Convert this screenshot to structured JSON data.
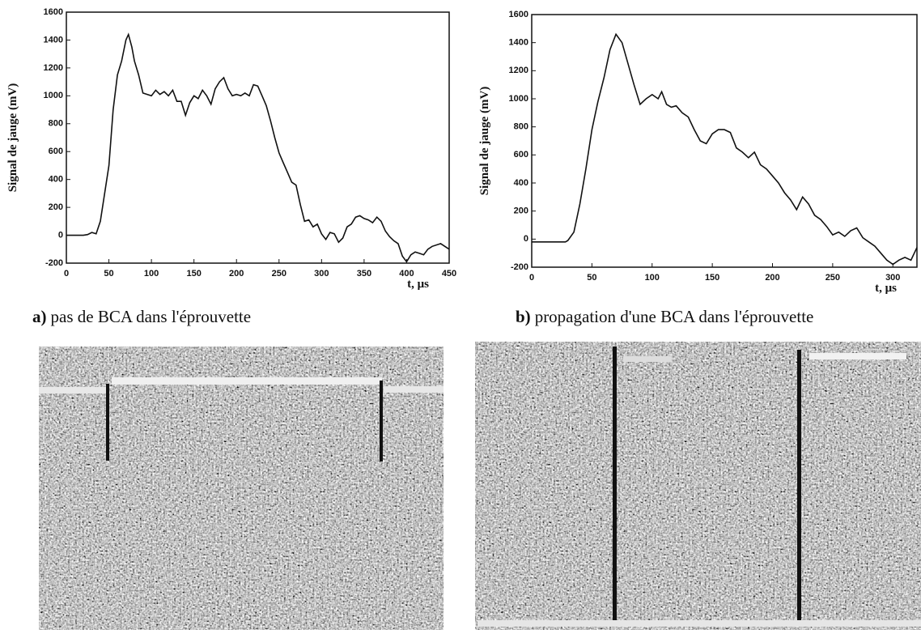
{
  "chart_data": [
    {
      "type": "line",
      "y_label": "Signal de jauge (mV)",
      "x_label": "t, μs",
      "x": [
        0,
        10,
        20,
        25,
        30,
        35,
        40,
        45,
        50,
        55,
        60,
        65,
        70,
        73,
        77,
        80,
        85,
        90,
        95,
        100,
        105,
        110,
        115,
        120,
        125,
        130,
        135,
        140,
        145,
        150,
        155,
        160,
        165,
        170,
        175,
        180,
        185,
        190,
        195,
        200,
        205,
        210,
        215,
        220,
        225,
        230,
        235,
        240,
        245,
        250,
        255,
        260,
        265,
        270,
        275,
        280,
        285,
        290,
        295,
        300,
        305,
        310,
        315,
        320,
        325,
        330,
        335,
        340,
        345,
        350,
        355,
        360,
        365,
        370,
        375,
        380,
        385,
        390,
        395,
        400,
        405,
        410,
        415,
        420,
        425,
        430,
        440,
        450
      ],
      "values": [
        0,
        0,
        0,
        5,
        20,
        10,
        100,
        300,
        500,
        900,
        1150,
        1250,
        1400,
        1440,
        1350,
        1250,
        1150,
        1020,
        1010,
        1000,
        1040,
        1010,
        1030,
        1000,
        1040,
        960,
        960,
        860,
        950,
        1000,
        980,
        1040,
        1000,
        940,
        1050,
        1100,
        1130,
        1050,
        1000,
        1010,
        1000,
        1020,
        1000,
        1080,
        1070,
        1000,
        930,
        820,
        700,
        590,
        520,
        450,
        380,
        360,
        220,
        100,
        110,
        60,
        80,
        10,
        -30,
        20,
        10,
        -50,
        -20,
        60,
        80,
        130,
        140,
        120,
        110,
        90,
        130,
        100,
        30,
        -10,
        -40,
        -60,
        -150,
        -190,
        -140,
        -120,
        -130,
        -140,
        -100,
        -80,
        -60,
        -100
      ],
      "color": "#111111",
      "xlim": [
        0,
        450
      ],
      "ylim": [
        -200,
        1600
      ],
      "xticks": [
        0,
        50,
        100,
        150,
        200,
        250,
        300,
        350,
        400,
        450
      ],
      "yticks": [
        -200,
        0,
        200,
        400,
        600,
        800,
        1000,
        1200,
        1400,
        1600
      ]
    },
    {
      "type": "line",
      "y_label": "Signal de jauge (mV)",
      "x_label": "t, μs",
      "x": [
        0,
        10,
        20,
        28,
        30,
        35,
        40,
        45,
        50,
        55,
        60,
        65,
        70,
        75,
        80,
        85,
        90,
        95,
        100,
        105,
        108,
        112,
        116,
        120,
        125,
        130,
        135,
        140,
        145,
        150,
        155,
        160,
        165,
        170,
        175,
        180,
        185,
        190,
        195,
        200,
        205,
        210,
        215,
        220,
        225,
        230,
        235,
        240,
        245,
        250,
        255,
        260,
        265,
        270,
        275,
        280,
        285,
        290,
        295,
        300,
        305,
        310,
        315,
        320
      ],
      "values": [
        -20,
        -20,
        -20,
        -20,
        -10,
        50,
        250,
        500,
        780,
        980,
        1150,
        1350,
        1460,
        1400,
        1250,
        1100,
        960,
        1000,
        1030,
        1000,
        1050,
        960,
        940,
        950,
        900,
        870,
        780,
        700,
        680,
        750,
        780,
        780,
        760,
        650,
        620,
        580,
        620,
        530,
        500,
        450,
        400,
        330,
        280,
        210,
        300,
        250,
        170,
        140,
        90,
        30,
        50,
        20,
        60,
        80,
        10,
        -20,
        -50,
        -100,
        -150,
        -180,
        -150,
        -130,
        -150,
        -60
      ],
      "color": "#111111",
      "xlim": [
        0,
        320
      ],
      "ylim": [
        -200,
        1600
      ],
      "xticks": [
        0,
        50,
        100,
        150,
        200,
        250,
        300
      ],
      "yticks": [
        -200,
        0,
        200,
        400,
        600,
        800,
        1000,
        1200,
        1400,
        1600
      ]
    }
  ],
  "captions": [
    {
      "label": "a)",
      "text": "pas de BCA dans l'éprouvette"
    },
    {
      "label": "b)",
      "text": "propagation d'une BCA dans l'éprouvette"
    }
  ]
}
